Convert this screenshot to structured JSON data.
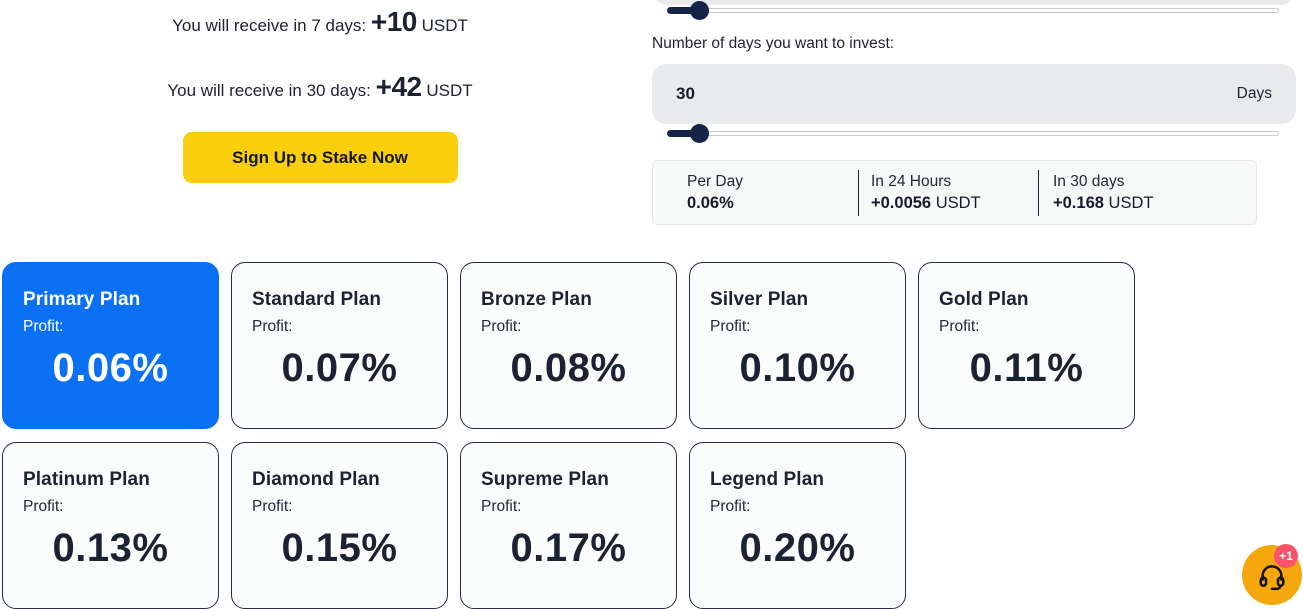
{
  "receive": {
    "line7_prefix": "You will receive in 7 days:",
    "line7_value": "+10",
    "line7_unit": "USDT",
    "line30_prefix": "You will receive in 30 days:",
    "line30_value": "+42",
    "line30_unit": "USDT"
  },
  "signup_button": {
    "label": "Sign Up to Stake Now"
  },
  "invest": {
    "days_label": "Number of days you want to invest:",
    "days_value": "30",
    "days_unit": "Days",
    "amount_slider_percent": 4,
    "days_slider_percent": 4
  },
  "stats": {
    "columns": [
      {
        "label": "Per Day",
        "value": "0.06%",
        "unit": ""
      },
      {
        "label": "In 24 Hours",
        "value": "+0.0056",
        "unit": " USDT"
      },
      {
        "label": "In 30 days",
        "value": "+0.168",
        "unit": " USDT"
      }
    ]
  },
  "plans": {
    "profit_label": "Profit:",
    "items": [
      {
        "name": "Primary Plan",
        "percent": "0.06%",
        "selected": true
      },
      {
        "name": "Standard Plan",
        "percent": "0.07%",
        "selected": false
      },
      {
        "name": "Bronze Plan",
        "percent": "0.08%",
        "selected": false
      },
      {
        "name": "Silver Plan",
        "percent": "0.10%",
        "selected": false
      },
      {
        "name": "Gold Plan",
        "percent": "0.11%",
        "selected": false
      },
      {
        "name": "Platinum Plan",
        "percent": "0.13%",
        "selected": false
      },
      {
        "name": "Diamond Plan",
        "percent": "0.15%",
        "selected": false
      },
      {
        "name": "Supreme Plan",
        "percent": "0.17%",
        "selected": false
      },
      {
        "name": "Legend Plan",
        "percent": "0.20%",
        "selected": false
      }
    ]
  },
  "chat": {
    "badge": "+1",
    "icon": "headset-icon"
  },
  "colors": {
    "accent_blue": "#0b70f3",
    "button_yellow": "#f9ce0d",
    "slider_navy": "#152349",
    "chat_orange": "#f6a70d",
    "badge_red": "#f9536b",
    "input_gray": "#e9eaeb",
    "stats_gray": "#f7f8f8",
    "text_dark": "#1b2232"
  }
}
